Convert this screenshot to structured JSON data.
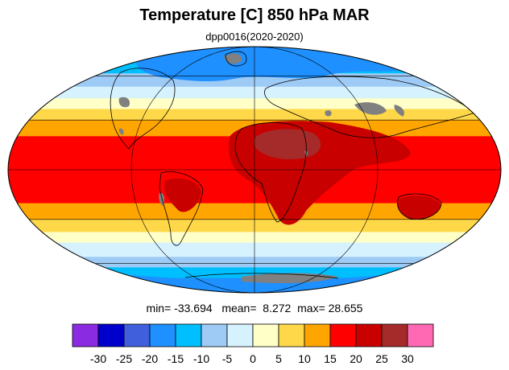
{
  "title": "Temperature [C] 850 hPa MAR",
  "subtitle": "dpp0016(2020-2020)",
  "stats": {
    "min_label": "min=",
    "min": "-33.694",
    "mean_label": "mean=",
    "mean": "8.272",
    "max_label": "max=",
    "max": "28.655"
  },
  "legend": {
    "ticks": [
      "-30",
      "-25",
      "-20",
      "-15",
      "-10",
      "-5",
      "0",
      "5",
      "10",
      "15",
      "20",
      "25",
      "30"
    ],
    "colors": [
      "#8a2be2",
      "#0000cd",
      "#3f5fdc",
      "#1e90ff",
      "#00bfff",
      "#9ecbf5",
      "#d6f2ff",
      "#ffffc8",
      "#ffd84a",
      "#ffa500",
      "#ff0000",
      "#c80000",
      "#a52a2a",
      "#ff69b4"
    ]
  },
  "map": {
    "projection": "mollweide",
    "missing_color": "#808080",
    "bands": [
      {
        "lat": 90,
        "level": 3
      },
      {
        "lat": 75,
        "level": 4
      },
      {
        "lat": 62,
        "level": 5
      },
      {
        "lat": 52,
        "level": 6
      },
      {
        "lat": 44,
        "level": 7
      },
      {
        "lat": 37,
        "level": 8
      },
      {
        "lat": 30,
        "level": 9
      },
      {
        "lat": 20,
        "level": 10
      },
      {
        "lat": -20,
        "level": 9
      },
      {
        "lat": -30,
        "level": 8
      },
      {
        "lat": -38,
        "level": 7
      },
      {
        "lat": -45,
        "level": 6
      },
      {
        "lat": -55,
        "level": 5
      },
      {
        "lat": -63,
        "level": 4
      },
      {
        "lat": -72,
        "level": 3
      },
      {
        "lat": -90,
        "level": 3
      }
    ]
  }
}
